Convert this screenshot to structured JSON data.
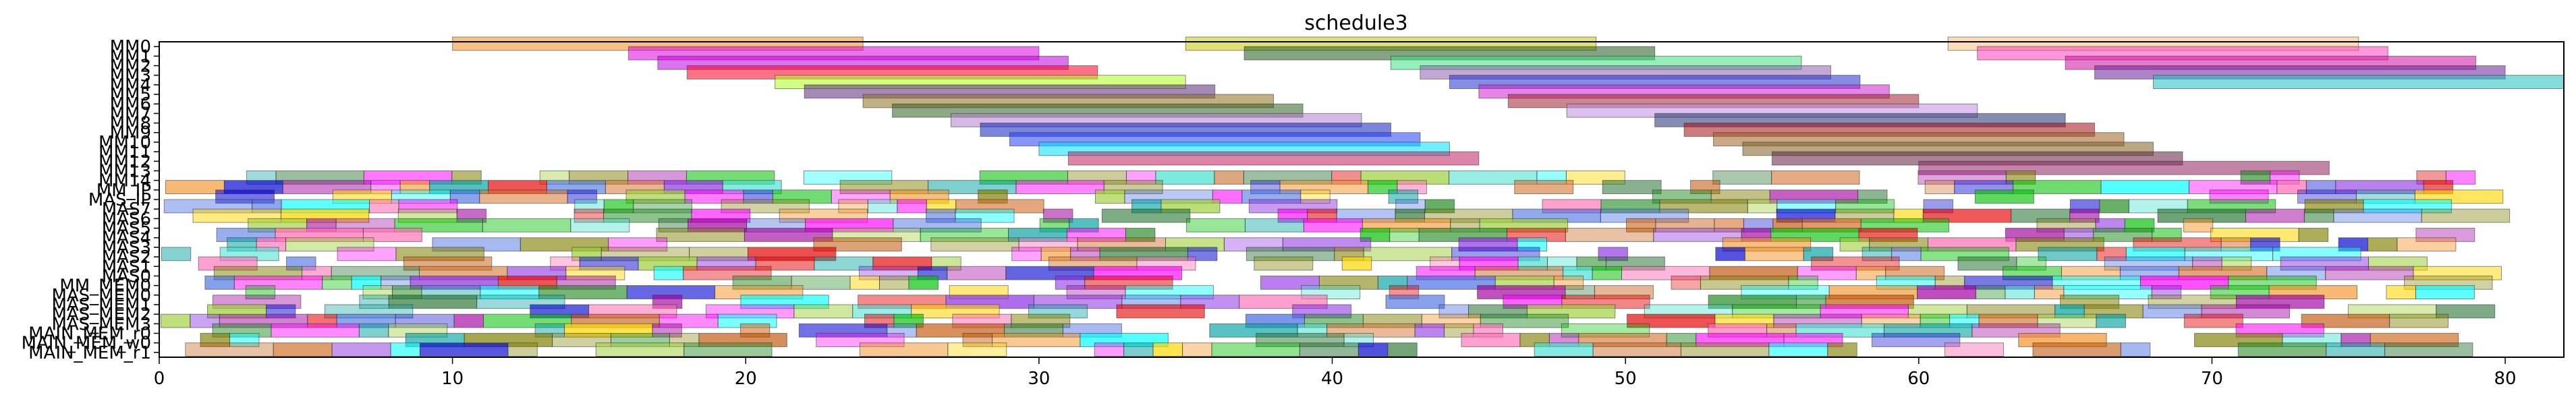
{
  "chart_data": {
    "type": "bar",
    "orientation": "horizontal-gantt",
    "title": "schedule3",
    "xlabel": "",
    "ylabel": "",
    "xlim": [
      0,
      82
    ],
    "x_ticks": [
      0,
      10,
      20,
      30,
      40,
      50,
      60,
      70,
      80
    ],
    "grid": false,
    "legend": "none",
    "rows": [
      "MM0",
      "MM1",
      "MM2",
      "MM3",
      "MM4",
      "MM5",
      "MM6",
      "MM7",
      "MM8",
      "MM9",
      "MM10",
      "MM11",
      "MM12",
      "MM13",
      "MM14",
      "MM_IP",
      "MAS_IP",
      "MAS7",
      "MAS6",
      "MAS5",
      "MAS4",
      "MAS3",
      "MAS2",
      "MAS1",
      "MAS0",
      "MM_MEM0",
      "MAS_MEM0",
      "MAS_MEM1",
      "MAS_MEM2",
      "MAS_MEM3",
      "MAIN_MEM_r0",
      "MAIN_MEM_w0",
      "MAIN_MEM_r1"
    ],
    "visible_row_labels": [
      "MM0",
      "MM1",
      "MM2",
      "MM3",
      "MM4",
      "MM5",
      "MM6",
      "MM7",
      "MM8",
      "MM9",
      "MM10",
      "MM11",
      "MM12",
      "MM13",
      "MM14",
      "MM_IP",
      "MAS_IP",
      "MAS7",
      "MAS6",
      "MAS5",
      "MAS4",
      "MAS3",
      "MAS2",
      "MAS1",
      "MAS0",
      "MM_MEM0",
      "MAS_MEM0",
      "MAS_MEM1",
      "MAS_MEM2",
      "MAS_MEM3",
      "MAIN_MEM_r0",
      "MAIN_MEM_w0",
      "MAIN_MEM_r1"
    ],
    "palette": [
      "#f28e1c",
      "#ff00ff",
      "#e50000",
      "#808000",
      "#00c000",
      "#a000a0",
      "#0000d0",
      "#00ffff",
      "#1f6e2b",
      "#c05000",
      "#00a0a0",
      "#ff69b4",
      "#40e0d0",
      "#7f7f00",
      "#ffd700",
      "#8a2be2",
      "#228b22",
      "#d2691e",
      "#4169e1",
      "#9acd32"
    ],
    "mm_tasks": [
      {
        "row": 0,
        "start": 10,
        "end": 24,
        "color": "#f28e1c"
      },
      {
        "row": 0,
        "start": 35,
        "end": 49,
        "color": "#c8c800"
      },
      {
        "row": 0,
        "start": 61,
        "end": 75,
        "color": "#f5c080"
      },
      {
        "row": 1,
        "start": 16,
        "end": 30,
        "color": "#e000e0"
      },
      {
        "row": 1,
        "start": 37,
        "end": 51,
        "color": "#1f5a1f"
      },
      {
        "row": 1,
        "start": 62,
        "end": 76,
        "color": "#ff40c0"
      },
      {
        "row": 2,
        "start": 17,
        "end": 31,
        "color": "#c000e0"
      },
      {
        "row": 2,
        "start": 42,
        "end": 56,
        "color": "#40e080"
      },
      {
        "row": 2,
        "start": 65,
        "end": 79,
        "color": "#d010a0"
      },
      {
        "row": 3,
        "start": 18,
        "end": 32,
        "color": "#ff0020"
      },
      {
        "row": 3,
        "start": 43,
        "end": 57,
        "color": "#9060b0"
      },
      {
        "row": 3,
        "start": 66,
        "end": 80,
        "color": "#6a1f9a"
      },
      {
        "row": 4,
        "start": 21,
        "end": 35,
        "color": "#b0ff20"
      },
      {
        "row": 4,
        "start": 44,
        "end": 58,
        "color": "#2030d0"
      },
      {
        "row": 4,
        "start": 68,
        "end": 82,
        "color": "#20c0c0"
      },
      {
        "row": 5,
        "start": 22,
        "end": 36,
        "color": "#5a2a7a"
      },
      {
        "row": 5,
        "start": 45,
        "end": 59,
        "color": "#d020d0"
      },
      {
        "row": 6,
        "start": 24,
        "end": 38,
        "color": "#907020"
      },
      {
        "row": 6,
        "start": 46,
        "end": 60,
        "color": "#a02030"
      },
      {
        "row": 7,
        "start": 25,
        "end": 39,
        "color": "#306020"
      },
      {
        "row": 7,
        "start": 48,
        "end": 62,
        "color": "#c090e0"
      },
      {
        "row": 8,
        "start": 27,
        "end": 41,
        "color": "#b080d0"
      },
      {
        "row": 8,
        "start": 51,
        "end": 65,
        "color": "#203070"
      },
      {
        "row": 9,
        "start": 28,
        "end": 42,
        "color": "#1020c0"
      },
      {
        "row": 9,
        "start": 52,
        "end": 66,
        "color": "#a01010"
      },
      {
        "row": 10,
        "start": 29,
        "end": 43,
        "color": "#2040ff"
      },
      {
        "row": 10,
        "start": 53,
        "end": 67,
        "color": "#a06020"
      },
      {
        "row": 11,
        "start": 30,
        "end": 44,
        "color": "#00e0ff"
      },
      {
        "row": 11,
        "start": 54,
        "end": 68,
        "color": "#806020"
      },
      {
        "row": 12,
        "start": 31,
        "end": 45,
        "color": "#c02060"
      },
      {
        "row": 12,
        "start": 55,
        "end": 69,
        "color": "#602040"
      },
      {
        "row": 13,
        "start": 60,
        "end": 74,
        "color": "#902060"
      }
    ]
  },
  "dense_rows": {
    "first": 14,
    "last": 32,
    "x_start": 0,
    "x_end": 78,
    "fill_seed": 7
  }
}
